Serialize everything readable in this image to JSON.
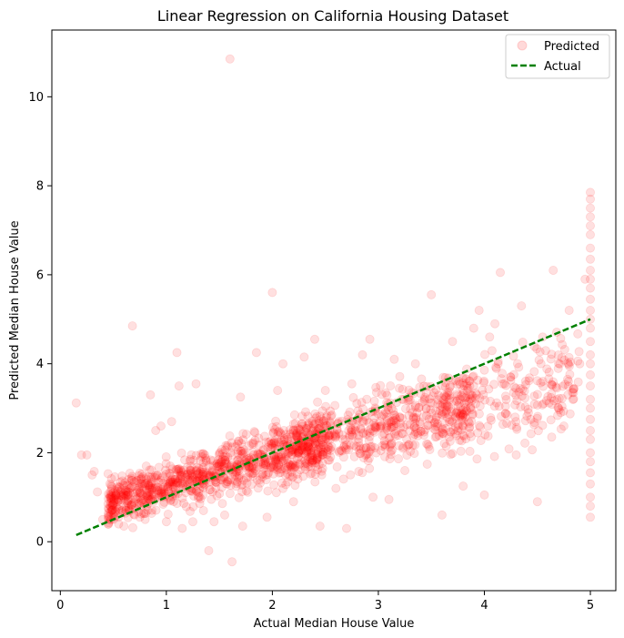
{
  "chart_data": {
    "type": "scatter",
    "title": "Linear Regression on California Housing Dataset",
    "xlabel": "Actual Median House Value",
    "ylabel": "Predicted Median House Value",
    "xlim": [
      -0.08,
      5.24
    ],
    "ylim": [
      -1.1,
      11.5
    ],
    "xticks": [
      0,
      1,
      2,
      3,
      4,
      5
    ],
    "yticks": [
      0,
      2,
      4,
      6,
      8,
      10
    ],
    "grid": false,
    "legend_position": "top-right",
    "series": [
      {
        "name": "Predicted",
        "kind": "scatter",
        "color": "#ff0000",
        "opacity": 0.12,
        "points": [
          [
            0.15,
            3.12
          ],
          [
            0.2,
            1.95
          ],
          [
            0.25,
            1.95
          ],
          [
            0.3,
            1.5
          ],
          [
            0.32,
            1.58
          ],
          [
            0.35,
            1.12
          ],
          [
            0.4,
            0.5
          ],
          [
            0.45,
            0.55
          ],
          [
            0.5,
            0.6
          ],
          [
            0.55,
            0.4
          ],
          [
            0.6,
            0.35
          ],
          [
            0.62,
            0.7
          ],
          [
            0.68,
            4.85
          ],
          [
            0.7,
            0.6
          ],
          [
            0.75,
            0.55
          ],
          [
            0.8,
            0.5
          ],
          [
            0.85,
            3.3
          ],
          [
            0.9,
            2.5
          ],
          [
            0.95,
            2.6
          ],
          [
            1.0,
            0.45
          ],
          [
            1.05,
            2.7
          ],
          [
            1.1,
            4.25
          ],
          [
            1.12,
            3.5
          ],
          [
            1.15,
            0.3
          ],
          [
            1.25,
            0.45
          ],
          [
            1.28,
            3.55
          ],
          [
            1.35,
            0.7
          ],
          [
            1.4,
            -0.2
          ],
          [
            1.45,
            0.45
          ],
          [
            1.55,
            0.6
          ],
          [
            1.6,
            10.85
          ],
          [
            1.62,
            -0.45
          ],
          [
            1.7,
            3.25
          ],
          [
            1.72,
            0.35
          ],
          [
            1.85,
            4.25
          ],
          [
            1.95,
            0.55
          ],
          [
            2.0,
            5.6
          ],
          [
            2.05,
            3.4
          ],
          [
            2.1,
            4.0
          ],
          [
            2.2,
            0.9
          ],
          [
            2.3,
            4.15
          ],
          [
            2.4,
            4.55
          ],
          [
            2.45,
            0.35
          ],
          [
            2.5,
            3.4
          ],
          [
            2.6,
            1.2
          ],
          [
            2.7,
            0.3
          ],
          [
            2.75,
            3.55
          ],
          [
            2.85,
            4.2
          ],
          [
            2.92,
            4.55
          ],
          [
            2.95,
            1.0
          ],
          [
            3.1,
            0.95
          ],
          [
            3.15,
            4.1
          ],
          [
            3.25,
            1.6
          ],
          [
            3.35,
            4.0
          ],
          [
            3.5,
            5.55
          ],
          [
            3.6,
            0.6
          ],
          [
            3.7,
            4.5
          ],
          [
            3.8,
            1.25
          ],
          [
            3.9,
            4.8
          ],
          [
            3.95,
            5.2
          ],
          [
            4.0,
            1.05
          ],
          [
            4.05,
            4.6
          ],
          [
            4.1,
            4.9
          ],
          [
            4.15,
            6.05
          ],
          [
            4.3,
            1.95
          ],
          [
            4.35,
            5.3
          ],
          [
            4.5,
            0.9
          ],
          [
            4.55,
            4.6
          ],
          [
            4.65,
            6.1
          ],
          [
            4.75,
            2.6
          ],
          [
            4.8,
            5.2
          ],
          [
            4.9,
            4.0
          ],
          [
            4.95,
            5.9
          ],
          [
            5.0,
            7.85
          ],
          [
            5.0,
            7.7
          ],
          [
            5.0,
            7.5
          ],
          [
            5.0,
            7.3
          ],
          [
            5.0,
            7.1
          ],
          [
            5.0,
            6.9
          ],
          [
            5.0,
            6.6
          ],
          [
            5.0,
            6.35
          ],
          [
            5.0,
            6.1
          ],
          [
            5.0,
            5.9
          ],
          [
            5.0,
            5.7
          ],
          [
            5.0,
            5.45
          ],
          [
            5.0,
            5.2
          ],
          [
            5.0,
            5.0
          ],
          [
            5.0,
            4.8
          ],
          [
            5.0,
            4.5
          ],
          [
            5.0,
            4.2
          ],
          [
            5.0,
            4.0
          ],
          [
            5.0,
            3.75
          ],
          [
            5.0,
            3.5
          ],
          [
            5.0,
            3.2
          ],
          [
            5.0,
            3.0
          ],
          [
            5.0,
            2.75
          ],
          [
            5.0,
            2.5
          ],
          [
            5.0,
            2.3
          ],
          [
            5.0,
            2.0
          ],
          [
            5.0,
            1.8
          ],
          [
            5.0,
            1.55
          ],
          [
            5.0,
            1.3
          ],
          [
            5.0,
            1.0
          ],
          [
            5.0,
            0.8
          ],
          [
            5.0,
            0.55
          ]
        ]
      },
      {
        "name": "Actual",
        "kind": "line",
        "color": "#008000",
        "dash": "dashed",
        "points": [
          [
            0.15,
            0.15
          ],
          [
            5.0,
            5.0
          ]
        ]
      }
    ]
  }
}
